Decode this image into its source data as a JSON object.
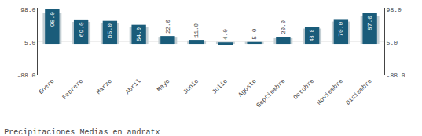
{
  "chart_data": {
    "type": "bar",
    "title": "Precipitaciones Medias en andratx",
    "categories": [
      "Enero",
      "Febrero",
      "Marzo",
      "Abril",
      "Mayo",
      "Junio",
      "Julio",
      "Agosto",
      "Septiembre",
      "Octubre",
      "Noviembre",
      "Diciembre"
    ],
    "series": [
      {
        "color": "#c4cfd4",
        "values": [
          88.2,
          62.1,
          58.5,
          48.6,
          19.8,
          9.35,
          5.5,
          5.5,
          18,
          43.2,
          63,
          78.3
        ]
      },
      {
        "color": "#1a5c7a",
        "values": [
          98,
          69,
          65,
          54,
          22,
          11,
          4,
          5,
          20,
          48,
          70,
          87
        ],
        "value_labels": [
          "98.0",
          "69.0",
          "65.0",
          "54.0",
          "22.0",
          "11.0",
          "4.0",
          "5.0",
          "20.0",
          "48.0",
          "70.0",
          "87.0"
        ]
      }
    ],
    "ylim": [
      -88.5,
      102
    ],
    "yticks": [
      {
        "value": -88,
        "label": "-88.0"
      },
      {
        "value": 5,
        "label": "5.0"
      },
      {
        "value": 98,
        "label": "98.0"
      }
    ],
    "y2lim": [
      -88.5,
      102
    ],
    "y2ticks": [
      {
        "value": -88,
        "label": "-88.0"
      },
      {
        "value": 5,
        "label": "5.0"
      },
      {
        "value": 98,
        "label": "98.0"
      }
    ],
    "grid": true,
    "data_labels": true
  }
}
